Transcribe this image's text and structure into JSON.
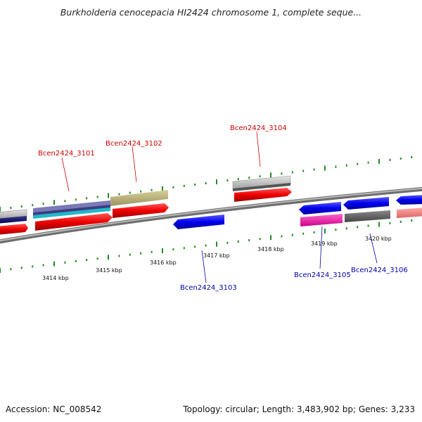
{
  "title": "Burkholderia cenocepacia HI2424 chromosome 1, complete seque...",
  "footer": {
    "accession": "Accession: NC_008542",
    "summary": "Topology: circular; Length: 3,483,902 bp; Genes: 3,233"
  },
  "axis_labels": [
    "3414 kbp",
    "3415 kbp",
    "3416 kbp",
    "3417 kbp",
    "3418 kbp",
    "3419 kbp",
    "3420 kbp"
  ],
  "genes": [
    {
      "name": "Bcen2424_3101",
      "strand": "forward",
      "color": "#cc0000"
    },
    {
      "name": "Bcen2424_3102",
      "strand": "forward",
      "color": "#cc0000"
    },
    {
      "name": "Bcen2424_3103",
      "strand": "reverse",
      "color": "#0000aa"
    },
    {
      "name": "Bcen2424_3104",
      "strand": "forward",
      "color": "#cc0000"
    },
    {
      "name": "Bcen2424_3105",
      "strand": "reverse",
      "color": "#0000aa"
    },
    {
      "name": "Bcen2424_3106",
      "strand": "reverse",
      "color": "#0000aa"
    }
  ],
  "colors": {
    "backbone": "#8a8a8a",
    "tick": "#228b22",
    "forward_label": "#cc0000",
    "reverse_label": "#0000aa"
  }
}
